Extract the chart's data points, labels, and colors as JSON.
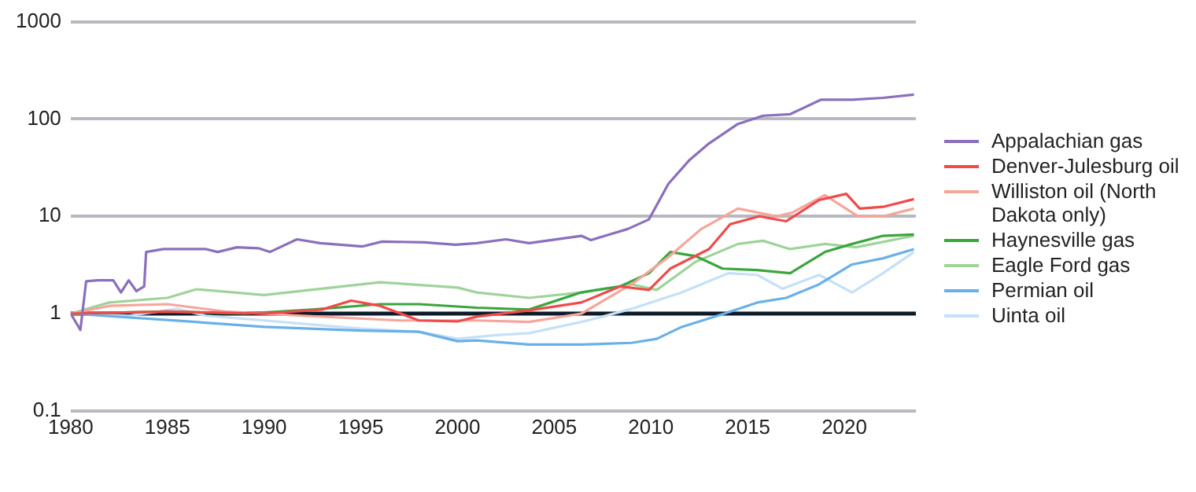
{
  "chart_data": {
    "type": "line",
    "log": "y",
    "grid": "y",
    "legend": "right",
    "marker": "none",
    "line_style": "solid",
    "xlim": [
      1980,
      2023.7
    ],
    "xticks": [
      1980,
      1985,
      1990,
      1995,
      2000,
      2005,
      2010,
      2015,
      2020
    ],
    "ylim": [
      0.1,
      1000
    ],
    "yticks": [
      0.1,
      1,
      10,
      100,
      1000
    ],
    "ref_lines": [
      {
        "axis": "y",
        "value": 1,
        "color": "#0d1b2a"
      }
    ],
    "series": [
      {
        "name": "Appalachian gas",
        "color": "#8a6fbd",
        "x": [
          1980,
          1980.5,
          1980.8,
          1981.4,
          1982.2,
          1982.6,
          1983,
          1983.4,
          1983.8,
          1983.9,
          1984.8,
          1987,
          1987.6,
          1988.6,
          1989.7,
          1990.3,
          1991.7,
          1992.9,
          1995.1,
          1996.1,
          1998.3,
          1999.9,
          2001,
          2002.5,
          2003.7,
          2006.4,
          2006.9,
          2008.8,
          2009.9,
          2010.9,
          2012,
          2013,
          2014.5,
          2015.8,
          2017.2,
          2018.8,
          2020.4,
          2022,
          2023.6
        ],
        "values": [
          1,
          0.68,
          2.15,
          2.2,
          2.2,
          1.65,
          2.2,
          1.7,
          1.9,
          4.3,
          4.6,
          4.6,
          4.3,
          4.8,
          4.7,
          4.3,
          5.8,
          5.3,
          4.9,
          5.5,
          5.4,
          5.1,
          5.3,
          5.8,
          5.3,
          6.3,
          5.7,
          7.4,
          9.3,
          21.5,
          38,
          56,
          89,
          108,
          112,
          158,
          158,
          165,
          178
        ]
      },
      {
        "name": "Denver-Julesburg oil",
        "color": "#f04a4a",
        "x": [
          1980,
          1985,
          1990,
          1993,
          1994.5,
          1996,
          1998,
          2000,
          2001,
          2003.7,
          2006.4,
          2008.4,
          2009.9,
          2011,
          2013,
          2014.1,
          2015.6,
          2017,
          2018.7,
          2020.1,
          2020.8,
          2022,
          2023.6
        ],
        "values": [
          1,
          1.05,
          1,
          1.1,
          1.36,
          1.2,
          0.85,
          0.83,
          0.93,
          1.08,
          1.3,
          1.9,
          1.75,
          2.9,
          4.6,
          8.3,
          10,
          8.9,
          14.7,
          17,
          12,
          12.5,
          15
        ]
      },
      {
        "name": "Williston oil (North Dakota only)",
        "color": "#f6a59a",
        "x": [
          1980,
          1982,
          1985,
          1988,
          1992,
          1997,
          2001,
          2003.7,
          2006.4,
          2009,
          2010.9,
          2012.6,
          2014.5,
          2016.5,
          2017.3,
          2019,
          2020.7,
          2022,
          2023.6
        ],
        "values": [
          1,
          1.2,
          1.25,
          1.05,
          0.95,
          0.85,
          0.85,
          0.82,
          1,
          2,
          3.8,
          7.4,
          12,
          10,
          10.9,
          16.5,
          10,
          10,
          12
        ]
      },
      {
        "name": "Haynesville gas",
        "color": "#3aa63e",
        "x": [
          1980,
          1985,
          1989,
          1992.5,
          1996,
          1998,
          2001,
          2003.7,
          2006.4,
          2008.4,
          2009.9,
          2011,
          2012.3,
          2013.7,
          2015.5,
          2017.2,
          2019,
          2020.4,
          2022,
          2023.6
        ],
        "values": [
          1,
          1.05,
          1,
          1.1,
          1.25,
          1.25,
          1.15,
          1.1,
          1.65,
          1.9,
          2.6,
          4.3,
          3.9,
          2.9,
          2.8,
          2.6,
          4.3,
          5.2,
          6.3,
          6.5
        ]
      },
      {
        "name": "Eagle Ford gas",
        "color": "#9fd39a",
        "x": [
          1980,
          1982,
          1985,
          1986.5,
          1990,
          1996,
          2000,
          2001,
          2003.7,
          2006.4,
          2009,
          2010.3,
          2012.3,
          2014.5,
          2015.8,
          2017.2,
          2019,
          2020.6,
          2023.6
        ],
        "values": [
          1,
          1.3,
          1.45,
          1.78,
          1.55,
          2.1,
          1.85,
          1.65,
          1.45,
          1.65,
          2,
          1.75,
          3.4,
          5.2,
          5.6,
          4.6,
          5.2,
          4.8,
          6.3
        ]
      },
      {
        "name": "Permian oil",
        "color": "#6ab0e8",
        "x": [
          1980,
          1985,
          1990,
          1995,
          1998,
          2000,
          2001,
          2003.7,
          2006.4,
          2009,
          2010.3,
          2011.6,
          2013.8,
          2015.5,
          2017,
          2018.7,
          2020.4,
          2022,
          2023.6
        ],
        "values": [
          1,
          0.86,
          0.73,
          0.67,
          0.65,
          0.52,
          0.53,
          0.48,
          0.48,
          0.5,
          0.55,
          0.73,
          1,
          1.3,
          1.45,
          2,
          3.2,
          3.7,
          4.6
        ]
      },
      {
        "name": "Uinta oil",
        "color": "#c5e0f7",
        "x": [
          1980,
          1983,
          1985.5,
          1987,
          1990,
          1995,
          1998,
          2000,
          2002,
          2003.7,
          2006.4,
          2007.5,
          2009,
          2011.6,
          2014,
          2015.5,
          2016.8,
          2018.7,
          2020.4,
          2022,
          2023.6
        ],
        "values": [
          1,
          0.95,
          1.12,
          0.95,
          0.85,
          0.7,
          0.65,
          0.55,
          0.6,
          0.63,
          0.82,
          0.93,
          1.12,
          1.65,
          2.6,
          2.5,
          1.8,
          2.5,
          1.65,
          2.6,
          4.3
        ]
      }
    ]
  }
}
